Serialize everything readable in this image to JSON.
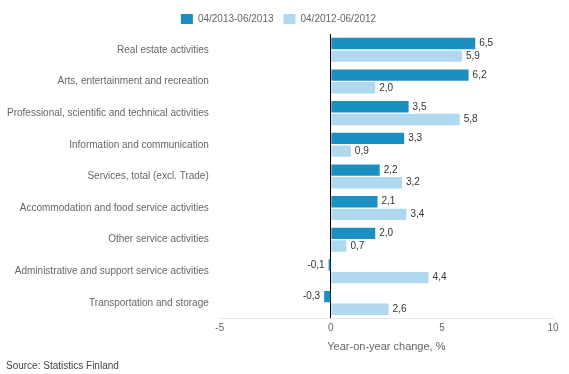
{
  "chart_data": {
    "type": "bar",
    "orientation": "horizontal",
    "categories": [
      "Real estate activities",
      "Arts, entertainment and recreation",
      "Professional, scientific and technical activities",
      "Information and communication",
      "Services, total (excl. Trade)",
      "Accommodation and food service activities",
      "Other service activities",
      "Administrative and support service activities",
      "Transportation and storage"
    ],
    "series": [
      {
        "name": "04/2013-06/2013",
        "color": "#1A8FC0",
        "values": [
          6.5,
          6.2,
          3.5,
          3.3,
          2.2,
          2.1,
          2.0,
          -0.1,
          -0.3
        ],
        "value_labels": [
          "6,5",
          "6,2",
          "3,5",
          "3,3",
          "2,2",
          "2,1",
          "2,0",
          "-0,1",
          "-0,3"
        ]
      },
      {
        "name": "04/2012-06/2012",
        "color": "#B0D8EE",
        "values": [
          5.9,
          2.0,
          5.8,
          0.9,
          3.2,
          3.4,
          0.7,
          4.4,
          2.6
        ],
        "value_labels": [
          "5,9",
          "2,0",
          "5,8",
          "0,9",
          "3,2",
          "3,4",
          "0,7",
          "4,4",
          "2,6"
        ]
      }
    ],
    "xlabel": "Year-on-year change, %",
    "xlim": [
      -5,
      10
    ],
    "xticks": [
      -5,
      0,
      5,
      10
    ],
    "data_labels": true,
    "grid": false,
    "legend": "top",
    "annotations": [
      "Source: Statistics Finland"
    ]
  }
}
